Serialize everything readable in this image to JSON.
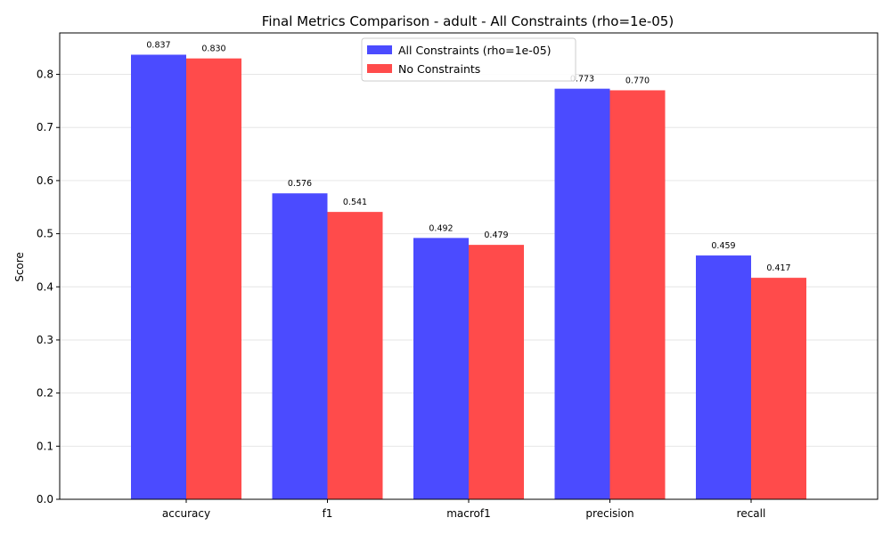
{
  "chart_data": {
    "type": "bar",
    "title": "Final Metrics Comparison - adult - All Constraints (rho=1e-05)",
    "xlabel": "",
    "ylabel": "Score",
    "categories": [
      "accuracy",
      "f1",
      "macrof1",
      "precision",
      "recall"
    ],
    "series": [
      {
        "name": "All Constraints (rho=1e-05)",
        "color": "#4b4bff",
        "values": [
          0.837,
          0.576,
          0.492,
          0.773,
          0.459
        ],
        "labels": [
          "0.837",
          "0.576",
          "0.492",
          "0.773",
          "0.459"
        ]
      },
      {
        "name": "No Constraints",
        "color": "#ff4b4b",
        "values": [
          0.83,
          0.541,
          0.479,
          0.77,
          0.417
        ],
        "labels": [
          "0.830",
          "0.541",
          "0.479",
          "0.770",
          "0.417"
        ]
      }
    ],
    "ylim": [
      0,
      0.878
    ],
    "yticks": [
      "0.0",
      "0.1",
      "0.2",
      "0.3",
      "0.4",
      "0.5",
      "0.6",
      "0.7",
      "0.8"
    ],
    "grid": "horizontal",
    "legend_position": "top-center"
  }
}
